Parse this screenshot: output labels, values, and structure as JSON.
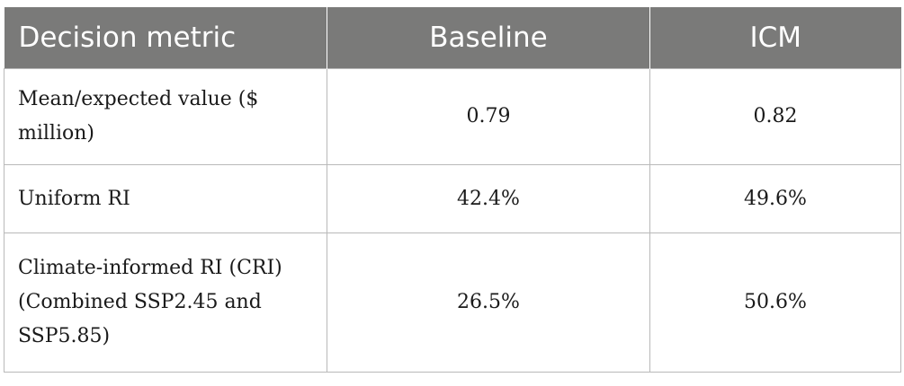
{
  "table": {
    "headers": [
      "Decision metric",
      "Baseline",
      "ICM"
    ],
    "rows": [
      {
        "metric": "Mean/expected value ($ million)",
        "baseline": "0.79",
        "icm": "0.82"
      },
      {
        "metric": "Uniform RI",
        "baseline": "42.4%",
        "icm": "49.6%"
      },
      {
        "metric": "Climate-informed RI (CRI) (Combined SSP2.45 and SSP5.85)",
        "baseline": "26.5%",
        "icm": "50.6%"
      }
    ]
  },
  "colors": {
    "header_bg": "#7a7a79",
    "header_text": "#ffffff",
    "border": "#b9b9b9"
  }
}
